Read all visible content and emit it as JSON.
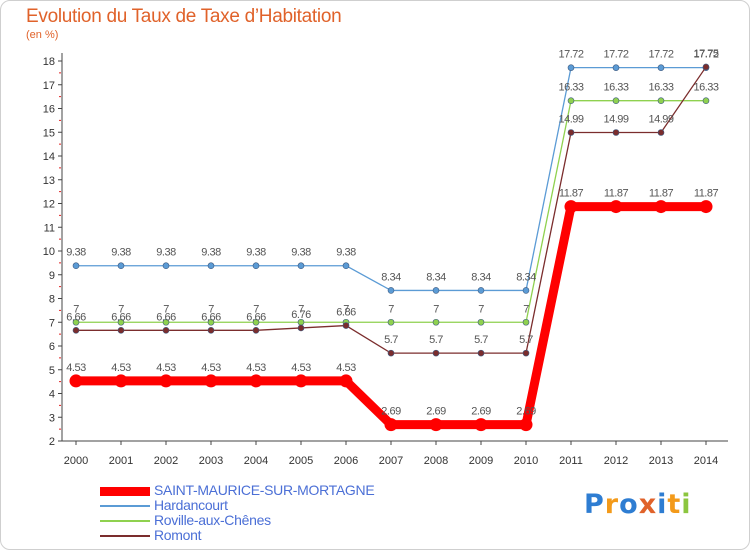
{
  "title": "Evolution du Taux de Taxe d’Habitation",
  "unit": "(en %)",
  "logo": {
    "text": "Proxiti",
    "colors": [
      "#2e7dd2",
      "#f39a1a",
      "#2e7dd2",
      "#e0622a",
      "#2e7dd2",
      "#f39a1a",
      "#8cc63f"
    ]
  },
  "chart_data": {
    "type": "line",
    "x": [
      "2000",
      "2001",
      "2002",
      "2003",
      "2004",
      "2005",
      "2006",
      "2007",
      "2008",
      "2009",
      "2010",
      "2011",
      "2012",
      "2013",
      "2014"
    ],
    "ylim": [
      2,
      18
    ],
    "yticks": [
      "2",
      "3",
      "4",
      "5",
      "6",
      "7",
      "8",
      "9",
      "10",
      "11",
      "12",
      "13",
      "14",
      "15",
      "16",
      "17",
      "18"
    ],
    "grid": false,
    "legend_position": "bottom-left",
    "series": [
      {
        "name": "SAINT-MAURICE-SUR-MORTAGNE",
        "color": "#ff0000",
        "values": [
          4.53,
          4.53,
          4.53,
          4.53,
          4.53,
          4.53,
          4.53,
          2.69,
          2.69,
          2.69,
          2.69,
          11.87,
          11.87,
          11.87,
          11.87
        ],
        "labels": [
          "4.53",
          "4.53",
          "4.53",
          "4.53",
          "4.53",
          "4.53",
          "4.53",
          "2.69",
          "2.69",
          "2.69",
          "2.69",
          "11.87",
          "11.87",
          "11.87",
          "11.87"
        ]
      },
      {
        "name": "Hardancourt",
        "color": "#5b9bd5",
        "values": [
          9.38,
          9.38,
          9.38,
          9.38,
          9.38,
          9.38,
          9.38,
          8.34,
          8.34,
          8.34,
          8.34,
          17.72,
          17.72,
          17.72,
          17.72
        ],
        "labels": [
          "9.38",
          "9.38",
          "9.38",
          "9.38",
          "9.38",
          "9.38",
          "9.38",
          "8.34",
          "8.34",
          "8.34",
          "8.34",
          "17.72",
          "17.72",
          "17.72",
          "17.72"
        ]
      },
      {
        "name": "Roville-aux-Chênes",
        "color": "#8fd14f",
        "values": [
          7,
          7,
          7,
          7,
          7,
          7,
          7,
          7,
          7,
          7,
          7,
          16.33,
          16.33,
          16.33,
          16.33
        ],
        "labels": [
          "7",
          "7",
          "7",
          "7",
          "7",
          "7",
          "7",
          "7",
          "7",
          "7",
          "7",
          "16.33",
          "16.33",
          "16.33",
          "16.33"
        ]
      },
      {
        "name": "Romont",
        "color": "#7b2d2d",
        "values": [
          6.66,
          6.66,
          6.66,
          6.66,
          6.66,
          6.76,
          6.86,
          5.7,
          5.7,
          5.7,
          5.7,
          14.99,
          14.99,
          14.99,
          17.75
        ],
        "labels": [
          "6.66",
          "6.66",
          "6.66",
          "6.66",
          "6.66",
          "6.76",
          "6.86",
          "5.7",
          "5.7",
          "5.7",
          "5.7",
          "14.99",
          "14.99",
          "14.99",
          "17.75"
        ]
      }
    ]
  }
}
